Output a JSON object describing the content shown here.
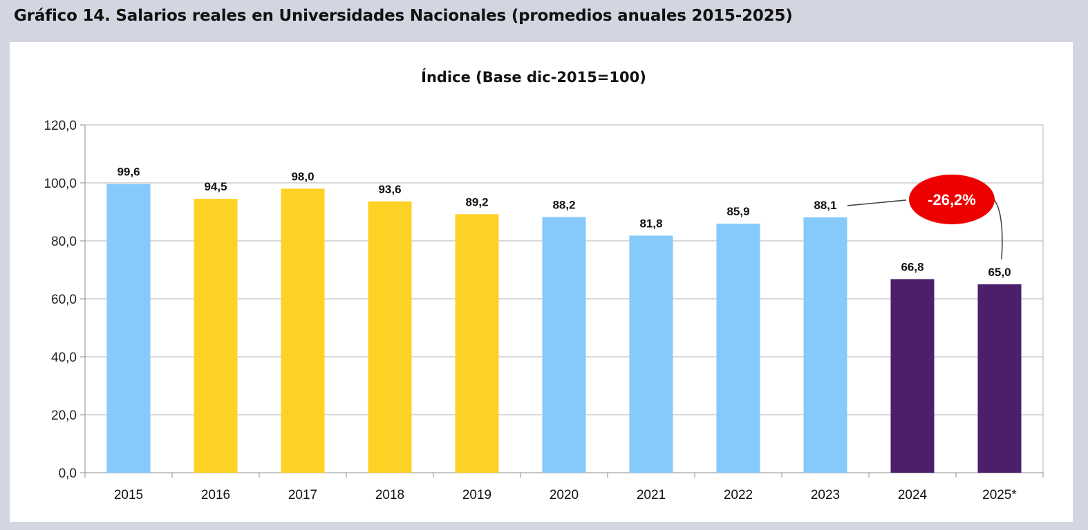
{
  "figure": {
    "title": "Gráfico 14.  Salarios reales en Universidades Nacionales (promedios anuales 2015-2025)"
  },
  "chart_data": {
    "type": "bar",
    "title": "Índice (Base dic-2015=100)",
    "xlabel": "",
    "ylabel": "",
    "categories": [
      "2015",
      "2016",
      "2017",
      "2018",
      "2019",
      "2020",
      "2021",
      "2022",
      "2023",
      "2024",
      "2025*"
    ],
    "values": [
      99.6,
      94.5,
      98.0,
      93.6,
      89.2,
      88.2,
      81.8,
      85.9,
      88.1,
      66.8,
      65.0
    ],
    "value_labels": [
      "99,6",
      "94,5",
      "98,0",
      "93,6",
      "89,2",
      "88,2",
      "81,8",
      "85,9",
      "88,1",
      "66,8",
      "65,0"
    ],
    "bar_colors": [
      "#86c9fb",
      "#fdd224",
      "#fdd224",
      "#fdd224",
      "#fdd224",
      "#86c9fb",
      "#86c9fb",
      "#86c9fb",
      "#86c9fb",
      "#4b1f69",
      "#4b1f69"
    ],
    "ylim": [
      0,
      120
    ],
    "yticks": [
      0,
      20,
      40,
      60,
      80,
      100,
      120
    ],
    "ytick_labels": [
      "0,0",
      "20,0",
      "40,0",
      "60,0",
      "80,0",
      "100,0",
      "120,0"
    ],
    "grid": true,
    "annotation": {
      "text": "-26,2%",
      "from_category": "2023",
      "to_category": "2025*",
      "badge_color": "#ee0000"
    }
  }
}
